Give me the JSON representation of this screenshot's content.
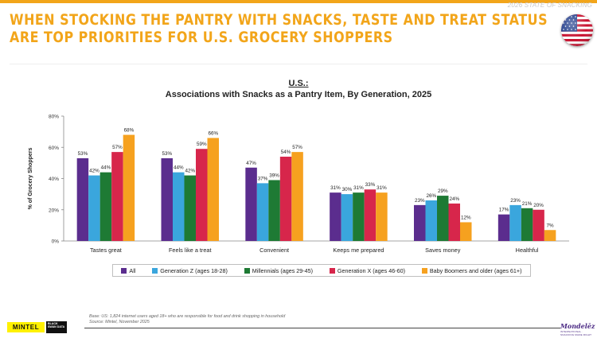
{
  "slide_tag": "2026 STATE OF SNACKING",
  "headline": {
    "line1": "WHEN STOCKING THE PANTRY WITH SNACKS, TASTE AND TREAT STATUS",
    "line2": "ARE TOP PRIORITIES FOR U.S. GROCERY SHOPPERS"
  },
  "flag_icon": "us-flag-icon",
  "colors": {
    "accent": "#f2a51a",
    "All": "#5b2d8e",
    "Generation Z (ages 18-28)": "#3aa6dd",
    "Millennials (ages 29-45)": "#1e7a34",
    "Generation X (ages 46-60)": "#d7264b",
    "Baby Boomers and older (ages 61+)": "#f6a11f"
  },
  "chart_data": {
    "type": "bar",
    "title": "U.S.:",
    "subtitle": "Associations with Snacks as a Pantry Item, By Generation, 2025",
    "xlabel": "",
    "ylabel": "% of Grocery Shoppers",
    "ylim": [
      0,
      80
    ],
    "yticks": [
      "0%",
      "20%",
      "40%",
      "60%",
      "80%"
    ],
    "grid": false,
    "legend_position": "bottom",
    "categories": [
      "Tastes great",
      "Feels like a treat",
      "Convenient",
      "Keeps me prepared",
      "Saves money",
      "Healthful"
    ],
    "series": [
      {
        "name": "All",
        "values": [
          53,
          53,
          47,
          31,
          23,
          17
        ]
      },
      {
        "name": "Generation Z (ages 18-28)",
        "values": [
          42,
          44,
          37,
          30,
          26,
          23
        ]
      },
      {
        "name": "Millennials (ages 29-45)",
        "values": [
          44,
          42,
          39,
          31,
          29,
          21
        ]
      },
      {
        "name": "Generation X (ages 46-60)",
        "values": [
          57,
          59,
          54,
          33,
          24,
          20
        ]
      },
      {
        "name": "Baby Boomers and older (ages 61+)",
        "values": [
          68,
          66,
          57,
          31,
          12,
          7
        ]
      }
    ]
  },
  "footnote": {
    "base": "Base: US: 1,824 internet users aged 18+ who are responsible for food and drink shopping in household",
    "source": "Source: Mintel, November 2025"
  },
  "logos": {
    "mintel": "MINTEL",
    "black_swan": "BLACK SWAN DATA",
    "mondelez": "Mondelēz",
    "mondelez_sub": "INTERNATIONAL · SNACKING MADE RIGHT"
  }
}
